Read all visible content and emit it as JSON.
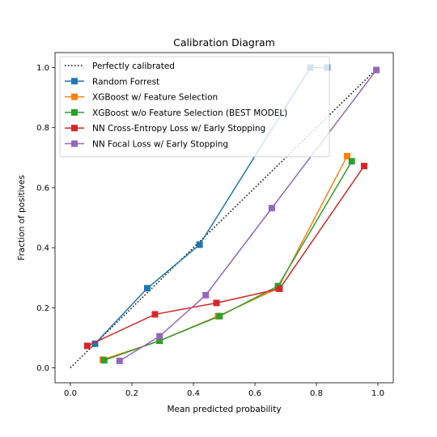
{
  "chart_data": {
    "type": "line",
    "title": "Calibration Diagram",
    "xlabel": "Mean predicted probability",
    "ylabel": "Fraction of positives",
    "xlim": [
      -0.05,
      1.05
    ],
    "ylim": [
      -0.05,
      1.05
    ],
    "xticks": [
      "0.0",
      "0.2",
      "0.4",
      "0.6",
      "0.8",
      "1.0"
    ],
    "yticks": [
      "0.0",
      "0.2",
      "0.4",
      "0.6",
      "0.8",
      "1.0"
    ],
    "grid": false,
    "legend_position": "upper-left",
    "series": [
      {
        "name": "Perfectly calibrated",
        "color": "#000000",
        "style": "dotted",
        "marker": "none",
        "x": [
          0,
          1
        ],
        "y": [
          0,
          1
        ]
      },
      {
        "name": "Random Forrest",
        "color": "#1f77b4",
        "style": "solid",
        "marker": "square",
        "x": [
          0.08,
          0.25,
          0.42,
          0.78,
          0.835
        ],
        "y": [
          0.08,
          0.265,
          0.41,
          1.0,
          1.0
        ]
      },
      {
        "name": "XGBoost w/ Feature Selection",
        "color": "#ff7f0e",
        "style": "solid",
        "marker": "square",
        "x": [
          0.105,
          0.29,
          0.48,
          0.675,
          0.9
        ],
        "y": [
          0.027,
          0.09,
          0.172,
          0.265,
          0.705
        ]
      },
      {
        "name": "XGBoost w/o Feature Selection (BEST MODEL)",
        "color": "#2ca02c",
        "style": "solid",
        "marker": "square",
        "x": [
          0.11,
          0.29,
          0.485,
          0.675,
          0.915
        ],
        "y": [
          0.025,
          0.09,
          0.172,
          0.272,
          0.688
        ]
      },
      {
        "name": "NN Cross-Entropy Loss w/ Early Stopping",
        "color": "#d62728",
        "style": "solid",
        "marker": "square",
        "x": [
          0.055,
          0.275,
          0.475,
          0.68,
          0.955
        ],
        "y": [
          0.073,
          0.178,
          0.216,
          0.263,
          0.672
        ]
      },
      {
        "name": "NN Focal Loss w/ Early Stopping",
        "color": "#9467bd",
        "style": "solid",
        "marker": "square",
        "x": [
          0.16,
          0.29,
          0.44,
          0.655,
          0.995
        ],
        "y": [
          0.023,
          0.105,
          0.242,
          0.532,
          0.992
        ]
      }
    ]
  }
}
